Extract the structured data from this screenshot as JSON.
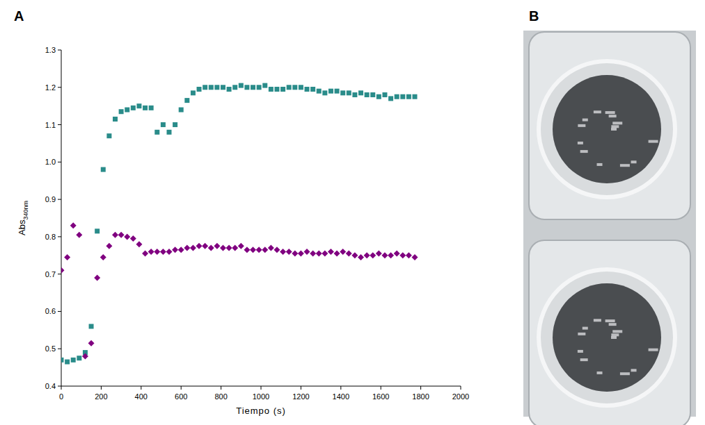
{
  "panel_letters": [
    "A",
    "B"
  ],
  "chart_data": {
    "type": "scatter",
    "x_label": "Tiempo (s)",
    "y_label": "Abs",
    "y_label_sub": "340nm",
    "x": [
      0,
      30,
      60,
      90,
      120,
      150,
      180,
      210,
      240,
      270,
      300,
      330,
      360,
      390,
      420,
      450,
      480,
      510,
      540,
      570,
      600,
      630,
      660,
      690,
      720,
      750,
      780,
      810,
      840,
      870,
      900,
      930,
      960,
      990,
      1020,
      1050,
      1080,
      1110,
      1140,
      1170,
      1200,
      1230,
      1260,
      1290,
      1320,
      1350,
      1380,
      1410,
      1440,
      1470,
      1500,
      1530,
      1560,
      1590,
      1620,
      1650,
      1680,
      1710,
      1740,
      1770
    ],
    "series": [
      {
        "color": "#2a8c8a",
        "marker": "square",
        "values": [
          0.47,
          0.465,
          0.47,
          0.475,
          0.49,
          0.56,
          0.815,
          0.98,
          1.07,
          1.115,
          1.135,
          1.14,
          1.145,
          1.15,
          1.145,
          1.145,
          1.08,
          1.1,
          1.08,
          1.1,
          1.14,
          1.165,
          1.185,
          1.195,
          1.2,
          1.2,
          1.2,
          1.2,
          1.195,
          1.2,
          1.205,
          1.2,
          1.2,
          1.2,
          1.205,
          1.195,
          1.195,
          1.195,
          1.2,
          1.2,
          1.2,
          1.195,
          1.195,
          1.19,
          1.185,
          1.19,
          1.19,
          1.185,
          1.185,
          1.18,
          1.185,
          1.18,
          1.18,
          1.175,
          1.18,
          1.17,
          1.175,
          1.175,
          1.175,
          1.175
        ]
      },
      {
        "color": "#800080",
        "marker": "diamond",
        "values": [
          0.71,
          0.745,
          0.83,
          0.805,
          0.48,
          0.515,
          0.69,
          0.745,
          0.775,
          0.805,
          0.805,
          0.8,
          0.795,
          0.78,
          0.755,
          0.76,
          0.76,
          0.76,
          0.76,
          0.765,
          0.765,
          0.77,
          0.77,
          0.775,
          0.775,
          0.77,
          0.775,
          0.77,
          0.77,
          0.77,
          0.775,
          0.765,
          0.765,
          0.765,
          0.765,
          0.77,
          0.765,
          0.76,
          0.76,
          0.755,
          0.755,
          0.76,
          0.755,
          0.755,
          0.755,
          0.76,
          0.755,
          0.76,
          0.755,
          0.75,
          0.745,
          0.75,
          0.75,
          0.755,
          0.75,
          0.75,
          0.755,
          0.75,
          0.75,
          0.745
        ]
      }
    ],
    "xlim": [
      0,
      2000
    ],
    "xticks": [
      0,
      200,
      400,
      600,
      800,
      1000,
      1200,
      1400,
      1600,
      1800,
      2000
    ],
    "ylim": [
      0.4,
      1.3
    ],
    "yticks": [
      0.4,
      0.5,
      0.6,
      0.7,
      0.8,
      0.9,
      {
        "value": 1,
        "label": "1.0"
      },
      1.1,
      1.2,
      1.3
    ],
    "grid": false
  }
}
